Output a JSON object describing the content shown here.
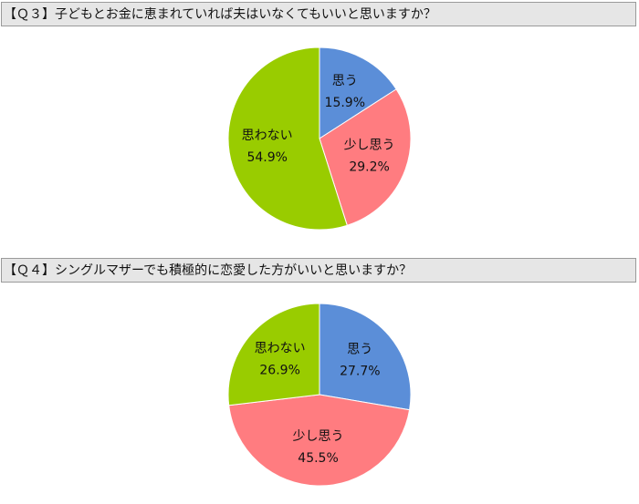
{
  "chart_data": [
    {
      "type": "pie",
      "title": "【Ｑ３】子どもとお金に恵まれていれば夫はいなくてもいいと思いますか？",
      "categories": [
        "思う",
        "少し思う",
        "思わない"
      ],
      "values": [
        15.9,
        29.2,
        54.9
      ],
      "value_labels": [
        "15.9%",
        "29.2%",
        "54.9%"
      ],
      "colors": [
        "#5b8ed8",
        "#ff7c80",
        "#99cc00"
      ]
    },
    {
      "type": "pie",
      "title": "【Ｑ４】シングルマザーでも積極的に恋愛した方がいいと思いますか？",
      "categories": [
        "思う",
        "少し思う",
        "思わない"
      ],
      "values": [
        27.7,
        45.5,
        26.9
      ],
      "value_labels": [
        "27.7%",
        "45.5%",
        "26.9%"
      ],
      "colors": [
        "#5b8ed8",
        "#ff7c80",
        "#99cc00"
      ]
    }
  ]
}
